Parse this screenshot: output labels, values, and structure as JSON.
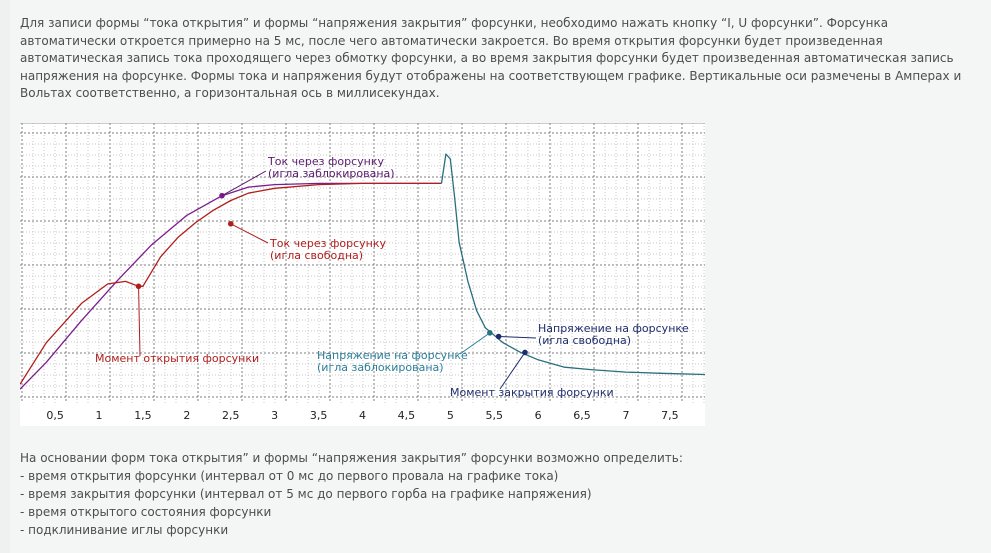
{
  "intro_text": "Для записи формы “тока открытия” и формы “напряжения закрытия” форсунки, необходимо нажать кнопку “I, U форсунки”. Форсунка автоматически откроется примерно на 5 мс, после чего автоматически закроется. Во время открытия форсунки будет произведенная автоматическая запись тока проходящего через обмотку форсунки, а во время закрытия форсунки будет произведенная автоматическая запись напряжения на форсунке. Формы тока и напряжения будут отображены на соответствующем графике. Вертикальные оси размечены в Амперах и Вольтах соответственно, а горизонтальная ось в миллисекундах.",
  "chart_data": {
    "type": "line",
    "x_ticks": [
      "0,5",
      "1",
      "1,5",
      "2",
      "2,5",
      "3",
      "3,5",
      "4",
      "4,5",
      "5",
      "5,5",
      "6",
      "6,5",
      "7",
      "7,5"
    ],
    "xlim": [
      0.1,
      7.9
    ],
    "grid": true,
    "series": [
      {
        "name": "Ток через форсунку (игла заблокирована)",
        "color": "#7a1e8c",
        "x": [
          0.1,
          0.4,
          0.8,
          1.2,
          1.6,
          2.0,
          2.4,
          2.7,
          3.0,
          3.5,
          4.0,
          4.5,
          4.9
        ],
        "y": [
          0.04,
          0.15,
          0.32,
          0.48,
          0.63,
          0.75,
          0.83,
          0.865,
          0.875,
          0.88,
          0.88,
          0.88,
          0.88
        ]
      },
      {
        "name": "Ток через форсунку (игла свободна)",
        "color": "#b01e1e",
        "x": [
          0.1,
          0.4,
          0.8,
          1.1,
          1.3,
          1.45,
          1.5,
          1.7,
          1.9,
          2.1,
          2.3,
          2.5,
          2.7,
          3.0,
          3.5,
          4.0,
          4.5,
          4.9
        ],
        "y": [
          0.06,
          0.23,
          0.39,
          0.47,
          0.48,
          0.46,
          0.46,
          0.58,
          0.66,
          0.72,
          0.77,
          0.81,
          0.84,
          0.86,
          0.875,
          0.88,
          0.88,
          0.88
        ]
      },
      {
        "name": "Напряжение на форсунке",
        "color": "#2a6f7e",
        "x": [
          4.9,
          4.95,
          5.0,
          5.05,
          5.1,
          5.2,
          5.3,
          5.4,
          5.5,
          5.6,
          5.8,
          6.0,
          6.3,
          6.6,
          7.0,
          7.4,
          7.9
        ],
        "y": [
          0.88,
          1.0,
          0.98,
          0.82,
          0.64,
          0.48,
          0.36,
          0.29,
          0.26,
          0.23,
          0.19,
          0.16,
          0.13,
          0.12,
          0.11,
          0.105,
          0.1
        ]
      }
    ],
    "markers": [
      {
        "x": 1.45,
        "y": 0.46,
        "color": "#b01e1e"
      },
      {
        "x": 2.5,
        "y": 0.715,
        "color": "#b01e1e"
      },
      {
        "x": 2.4,
        "y": 0.83,
        "color": "#7a1e8c"
      },
      {
        "x": 5.45,
        "y": 0.27,
        "color": "#2a6f7e"
      },
      {
        "x": 5.55,
        "y": 0.255,
        "color": "#1f2d6b"
      },
      {
        "x": 5.85,
        "y": 0.19,
        "color": "#1f2d6b"
      }
    ],
    "annotations": [
      {
        "lines": [
          "Ток через форсунку",
          "(игла заблокирована)"
        ],
        "color": "#5a1a6e"
      },
      {
        "lines": [
          "Ток через форсунку",
          "(игла свободна)"
        ],
        "color": "#b01e1e"
      },
      {
        "lines": [
          "Момент открытия форсунки"
        ],
        "color": "#b01e1e"
      },
      {
        "lines": [
          "Напряжение на форсунке",
          "(игла свободна)"
        ],
        "color": "#1f2d6b"
      },
      {
        "lines": [
          "Напряжение на форсунке",
          "(игла заблокирована)"
        ],
        "color": "#2a7e9c"
      },
      {
        "lines": [
          "Момент закрытия форсунки"
        ],
        "color": "#1f2d6b"
      }
    ]
  },
  "conclusion": {
    "lead": "На основании форм тока открытия” и формы “напряжения закрытия” форсунки возможно определить:",
    "items": [
      "- время открытия форсунки (интервал от 0 мс до первого провала на графике тока)",
      "- время закрытия форсунки (интервал от 5 мс до первого горба на графике напряжения)",
      "- время открытого состояния форсунки",
      "- подклинивание иглы форсунки"
    ]
  }
}
